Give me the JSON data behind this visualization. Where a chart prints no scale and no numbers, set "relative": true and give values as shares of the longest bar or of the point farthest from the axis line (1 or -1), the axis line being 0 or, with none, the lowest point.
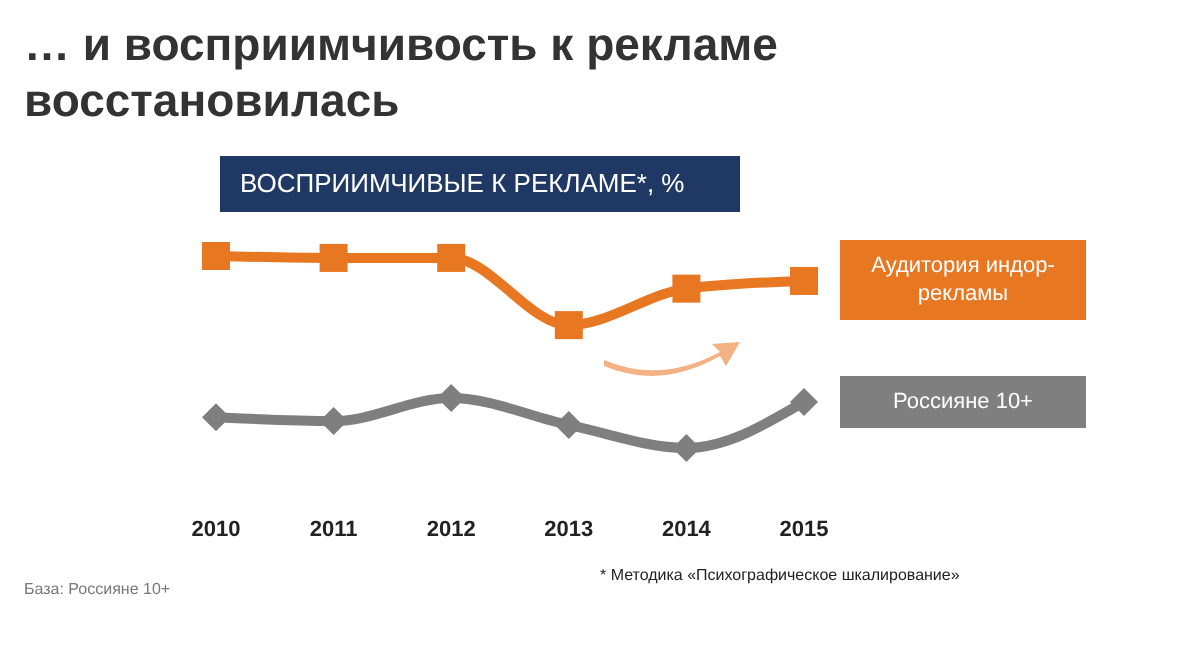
{
  "chart_data": {
    "type": "line",
    "title": "… и восприимчивость к рекламе восстановилась",
    "subtitle": "ВОСПРИИМЧИВЫЕ К РЕКЛАМЕ*, %",
    "categories": [
      "2010",
      "2011",
      "2012",
      "2013",
      "2014",
      "2015"
    ],
    "relative": true,
    "series": [
      {
        "name": "Аудитория индор-рекламы",
        "color": "#e87722",
        "marker": "square",
        "values": [
          1,
          0.99,
          0.99,
          0.64,
          0.83,
          0.87
        ]
      },
      {
        "name": "Россияне 10+",
        "color": "#7f7f7f",
        "marker": "diamond",
        "values": [
          0.16,
          0.14,
          0.26,
          0.12,
          0,
          0.24
        ]
      }
    ],
    "legend": "right",
    "annotations": [
      "* Методика «Психографическое шкалирование»",
      "База: Россияне 10+"
    ]
  }
}
